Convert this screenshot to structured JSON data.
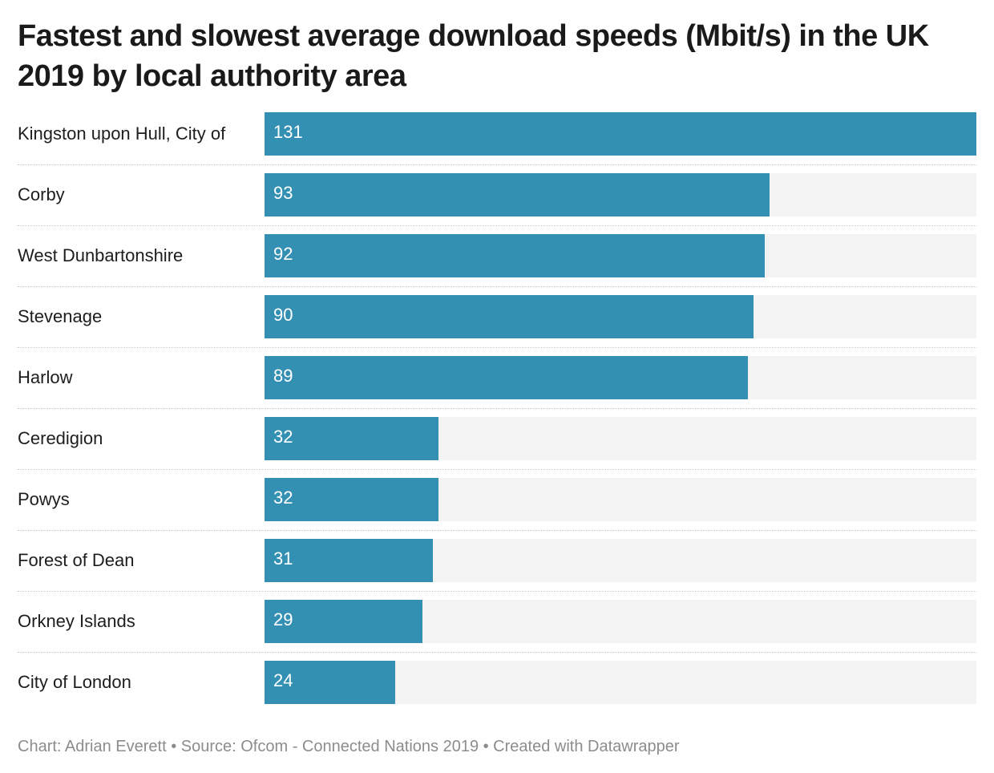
{
  "chart_data": {
    "type": "bar",
    "orientation": "horizontal",
    "title": "Fastest and slowest average download speeds (Mbit/s) in the UK 2019 by local authority area",
    "categories": [
      "Kingston upon Hull, City of",
      "Corby",
      "West Dunbartonshire",
      "Stevenage",
      "Harlow",
      "Ceredigion",
      "Powys",
      "Forest of Dean",
      "Orkney Islands",
      "City of London"
    ],
    "values": [
      131,
      93,
      92,
      90,
      89,
      32,
      32,
      31,
      29,
      24
    ],
    "xlabel": "",
    "ylabel": "",
    "xlim": [
      0,
      131
    ],
    "grid": false,
    "legend": "none",
    "bar_color": "#3490b3",
    "track_color": "#f3f3f3"
  },
  "footer": {
    "text": "Chart: Adrian Everett • Source: Ofcom - Connected Nations 2019 • Created with Datawrapper"
  }
}
